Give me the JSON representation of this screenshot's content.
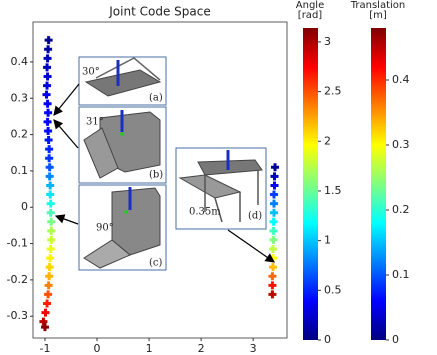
{
  "chart_data": {
    "type": "scatter",
    "title": "Joint Code Space",
    "xlim": [
      -1.23,
      3.65
    ],
    "ylim": [
      -0.36,
      0.51
    ],
    "xticks": [
      -1,
      0,
      1,
      2,
      3
    ],
    "yticks": [
      -0.3,
      -0.2,
      -0.1,
      0.0,
      0.1,
      0.2,
      0.3,
      0.4
    ],
    "colormap": "jet",
    "colorbars": [
      {
        "title": [
          "Angle",
          "[rad]"
        ],
        "clim": [
          0,
          3.14
        ],
        "ticks": [
          0.0,
          0.5,
          1.0,
          1.5,
          2.0,
          2.5,
          3.0
        ]
      },
      {
        "title": [
          "Translation",
          "[m]"
        ],
        "clim": [
          0,
          0.48
        ],
        "ticks": [
          0.0,
          0.1,
          0.2,
          0.3,
          0.4
        ]
      }
    ],
    "series": [
      {
        "colorbar": 0,
        "x": [
          -0.93,
          -0.94,
          -0.95,
          -0.96,
          -0.95,
          -0.96,
          -0.97,
          -0.95,
          -0.94,
          -0.95,
          -0.94,
          -0.93,
          -0.92,
          -0.92,
          -0.91,
          -0.91,
          -0.9,
          -0.9,
          -0.89,
          -0.89,
          -0.88,
          -0.88,
          -0.88,
          -0.89,
          -0.9,
          -0.91,
          -0.92,
          -0.93,
          -0.94,
          -0.96,
          -0.99,
          -1.03,
          -1.0
        ],
        "values": [
          0.46,
          0.435,
          0.41,
          0.385,
          0.36,
          0.335,
          0.31,
          0.285,
          0.26,
          0.235,
          0.21,
          0.185,
          0.16,
          0.135,
          0.11,
          0.085,
          0.06,
          0.035,
          0.01,
          -0.015,
          -0.04,
          -0.065,
          -0.09,
          -0.115,
          -0.14,
          -0.165,
          -0.19,
          -0.215,
          -0.24,
          -0.265,
          -0.29,
          -0.315,
          -0.33
        ],
        "color_values": [
          0.05,
          0.1,
          0.15,
          0.2,
          0.25,
          0.3,
          0.32,
          0.35,
          0.38,
          0.4,
          0.42,
          0.45,
          0.5,
          0.55,
          0.65,
          0.8,
          0.95,
          1.1,
          1.25,
          1.4,
          1.55,
          1.7,
          1.8,
          1.9,
          2.0,
          2.1,
          2.2,
          2.35,
          2.5,
          2.65,
          2.8,
          2.95,
          3.1
        ]
      },
      {
        "colorbar": 1,
        "x": [
          3.42,
          3.41,
          3.41,
          3.4,
          3.4,
          3.4,
          3.39,
          3.39,
          3.39,
          3.38,
          3.38,
          3.38,
          3.37,
          3.37,
          3.37
        ],
        "values": [
          0.11,
          0.085,
          0.06,
          0.035,
          0.01,
          -0.015,
          -0.04,
          -0.065,
          -0.09,
          -0.115,
          -0.14,
          -0.165,
          -0.19,
          -0.215,
          -0.24
        ],
        "color_values": [
          0.01,
          0.03,
          0.06,
          0.09,
          0.12,
          0.15,
          0.18,
          0.21,
          0.24,
          0.27,
          0.3,
          0.33,
          0.37,
          0.41,
          0.45
        ]
      }
    ],
    "annotations": {
      "a": {
        "angle": "30°",
        "label": "(a)"
      },
      "b": {
        "angle": "31°",
        "label": "(b)"
      },
      "c": {
        "angle": "90°",
        "label": "(c)"
      },
      "d": {
        "distance": "0.35m",
        "label": "(d)"
      }
    }
  }
}
